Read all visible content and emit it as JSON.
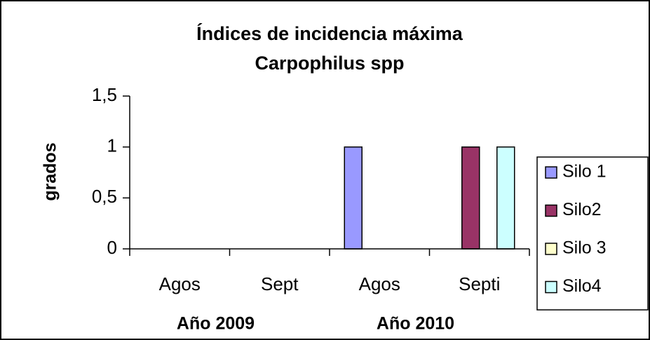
{
  "chart_data": {
    "type": "bar",
    "title": [
      "Índices de incidencia máxima",
      "Carpophilus spp"
    ],
    "ylabel": "grados",
    "categories": [
      "Agos",
      "Sept",
      "Agos",
      "Septi"
    ],
    "category_groups": [
      "Año 2009",
      "Año 2010"
    ],
    "series": [
      {
        "name": "Silo 1",
        "color": "#9999ff",
        "values": [
          0,
          0,
          1,
          0
        ]
      },
      {
        "name": "Silo2",
        "color": "#993366",
        "values": [
          0,
          0,
          0,
          1
        ]
      },
      {
        "name": "Silo 3",
        "color": "#ffffcc",
        "values": [
          0,
          0,
          0,
          0
        ]
      },
      {
        "name": "Silo4",
        "color": "#ccffff",
        "values": [
          0,
          0,
          0,
          1
        ]
      }
    ],
    "ylim": [
      0,
      1.5
    ],
    "yticks": [
      0,
      {
        "value": 0.5,
        "label": "0,5"
      },
      1,
      {
        "value": 1.5,
        "label": "1,5"
      }
    ],
    "grid": false,
    "legend": "right"
  }
}
